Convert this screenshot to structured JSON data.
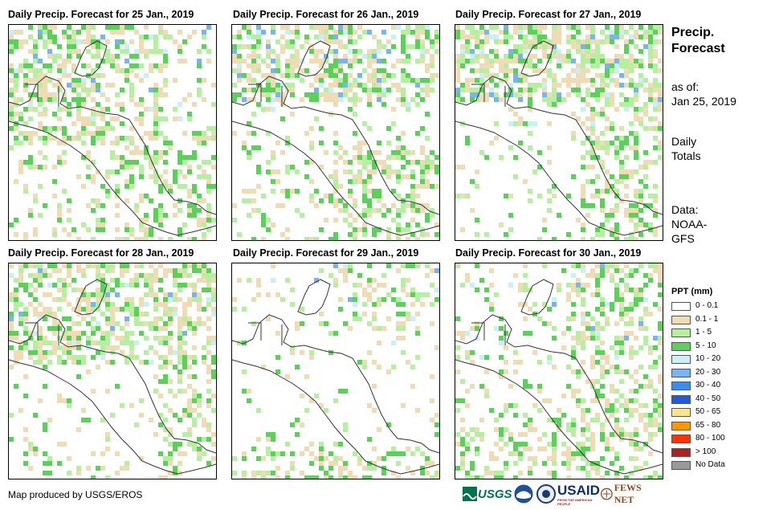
{
  "panels": [
    {
      "title": "Daily Precip. Forecast for 25 Jan., 2019",
      "wet_pattern": "A"
    },
    {
      "title": "Daily Precip. Forecast for 26 Jan., 2019",
      "wet_pattern": "B"
    },
    {
      "title": "Daily Precip. Forecast for 27 Jan., 2019",
      "wet_pattern": "C"
    },
    {
      "title": "Daily Precip. Forecast for 28 Jan., 2019",
      "wet_pattern": "D"
    },
    {
      "title": "Daily Precip. Forecast for 29 Jan., 2019",
      "wet_pattern": "E"
    },
    {
      "title": "Daily Precip. Forecast for 30 Jan., 2019",
      "wet_pattern": "F"
    }
  ],
  "side": {
    "title_line1": "Precip.",
    "title_line2": "Forecast",
    "asof_label": "as of:",
    "asof_date": "Jan 25, 2019",
    "totals_line1": "Daily",
    "totals_line2": "Totals",
    "data_line1": "Data:",
    "data_line2": "NOAA-",
    "data_line3": "GFS"
  },
  "legend": {
    "title": "PPT (mm)",
    "items": [
      {
        "label": "0 - 0.1",
        "color": "#ffffff"
      },
      {
        "label": "0.1 - 1",
        "color": "#f0dcb4"
      },
      {
        "label": "1 - 5",
        "color": "#b4f0a0"
      },
      {
        "label": "5 - 10",
        "color": "#5ad25a"
      },
      {
        "label": "10 - 20",
        "color": "#c8f0f8"
      },
      {
        "label": "20 - 30",
        "color": "#78b4f0"
      },
      {
        "label": "30 - 40",
        "color": "#3c8cf0"
      },
      {
        "label": "40 - 50",
        "color": "#1e5ae6"
      },
      {
        "label": "50 - 65",
        "color": "#ffe682"
      },
      {
        "label": "65 - 80",
        "color": "#ff9600"
      },
      {
        "label": "80 - 100",
        "color": "#ff3200"
      },
      {
        "label": "> 100",
        "color": "#b41e1e"
      },
      {
        "label": "No Data",
        "color": "#999999"
      }
    ]
  },
  "footer": {
    "credit": "Map produced by USGS/EROS",
    "logos": [
      "USGS",
      "NOAA",
      "USAID",
      "FEWS NET"
    ],
    "usaid_tagline": "FROM THE AMERICAN PEOPLE"
  }
}
